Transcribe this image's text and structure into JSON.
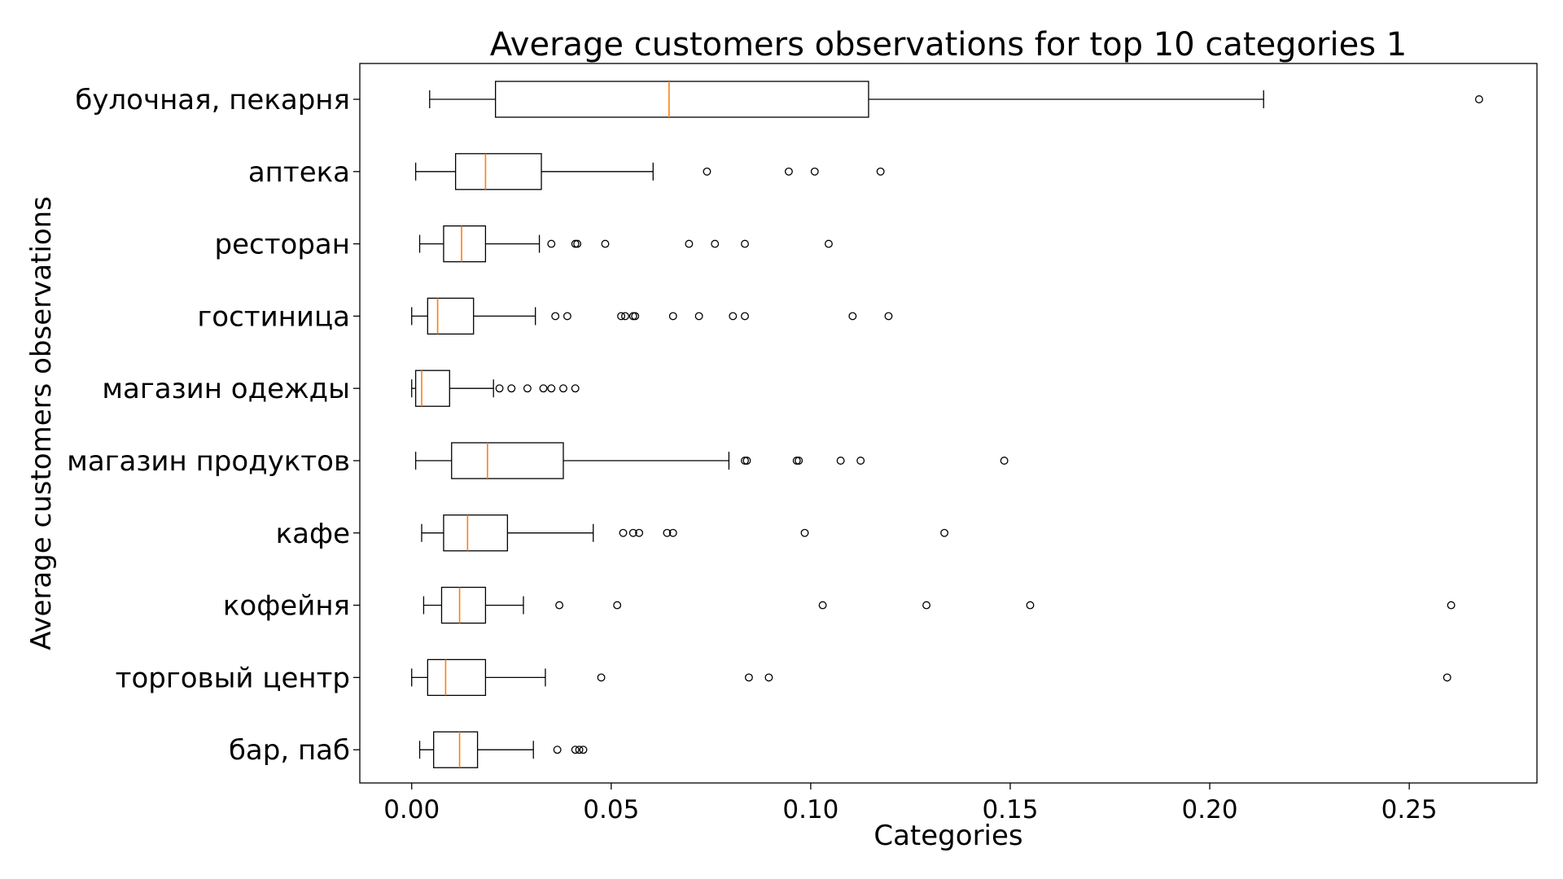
{
  "chart_data": {
    "type": "boxplot",
    "orientation": "horizontal",
    "title": "Average customers observations for top 10 categories 1",
    "xlabel": "Categories",
    "ylabel": "Average customers observations",
    "xlim": [
      -0.013,
      0.282
    ],
    "xticks": [
      0.0,
      0.05,
      0.1,
      0.15,
      0.2,
      0.25
    ],
    "xtick_labels": [
      "0.00",
      "0.05",
      "0.10",
      "0.15",
      "0.20",
      "0.25"
    ],
    "grid": false,
    "colors": {
      "box": "#000000",
      "median": "#ff7f0e"
    },
    "categories": [
      {
        "label": "булочная, пекарня",
        "whisker_low": 0.0045,
        "q1": 0.021,
        "median": 0.0645,
        "q3": 0.1145,
        "whisker_high": 0.2135,
        "outliers": [
          0.2675
        ]
      },
      {
        "label": "аптека",
        "whisker_low": 0.001,
        "q1": 0.011,
        "median": 0.0185,
        "q3": 0.0325,
        "whisker_high": 0.0605,
        "outliers": [
          0.074,
          0.0945,
          0.101,
          0.1175
        ]
      },
      {
        "label": "ресторан",
        "whisker_low": 0.002,
        "q1": 0.008,
        "median": 0.0125,
        "q3": 0.0185,
        "whisker_high": 0.032,
        "outliers": [
          0.035,
          0.041,
          0.0415,
          0.0485,
          0.0695,
          0.076,
          0.0835,
          0.1045
        ]
      },
      {
        "label": "гостиница",
        "whisker_low": 0.0,
        "q1": 0.004,
        "median": 0.0065,
        "q3": 0.0155,
        "whisker_high": 0.031,
        "outliers": [
          0.036,
          0.039,
          0.0525,
          0.0535,
          0.0555,
          0.056,
          0.0655,
          0.072,
          0.0805,
          0.0835,
          0.1105,
          0.1195
        ]
      },
      {
        "label": "магазин одежды",
        "whisker_low": 0.0,
        "q1": 0.001,
        "median": 0.0025,
        "q3": 0.0095,
        "whisker_high": 0.0205,
        "outliers": [
          0.022,
          0.025,
          0.029,
          0.033,
          0.035,
          0.038,
          0.041
        ]
      },
      {
        "label": "магазин продуктов",
        "whisker_low": 0.001,
        "q1": 0.01,
        "median": 0.019,
        "q3": 0.038,
        "whisker_high": 0.0795,
        "outliers": [
          0.0835,
          0.084,
          0.0965,
          0.097,
          0.1075,
          0.1125,
          0.1485
        ]
      },
      {
        "label": "кафе",
        "whisker_low": 0.0025,
        "q1": 0.008,
        "median": 0.014,
        "q3": 0.024,
        "whisker_high": 0.0455,
        "outliers": [
          0.053,
          0.0555,
          0.057,
          0.064,
          0.0655,
          0.0985,
          0.1335
        ]
      },
      {
        "label": "кофейня",
        "whisker_low": 0.003,
        "q1": 0.0075,
        "median": 0.012,
        "q3": 0.0185,
        "whisker_high": 0.028,
        "outliers": [
          0.037,
          0.0515,
          0.103,
          0.129,
          0.155,
          0.2605
        ]
      },
      {
        "label": "торговый центр",
        "whisker_low": 0.0,
        "q1": 0.004,
        "median": 0.0085,
        "q3": 0.0185,
        "whisker_high": 0.0335,
        "outliers": [
          0.0475,
          0.0845,
          0.0895,
          0.2595
        ]
      },
      {
        "label": "бар, паб",
        "whisker_low": 0.002,
        "q1": 0.0055,
        "median": 0.012,
        "q3": 0.0165,
        "whisker_high": 0.0305,
        "outliers": [
          0.0365,
          0.041,
          0.042,
          0.043
        ]
      }
    ]
  }
}
